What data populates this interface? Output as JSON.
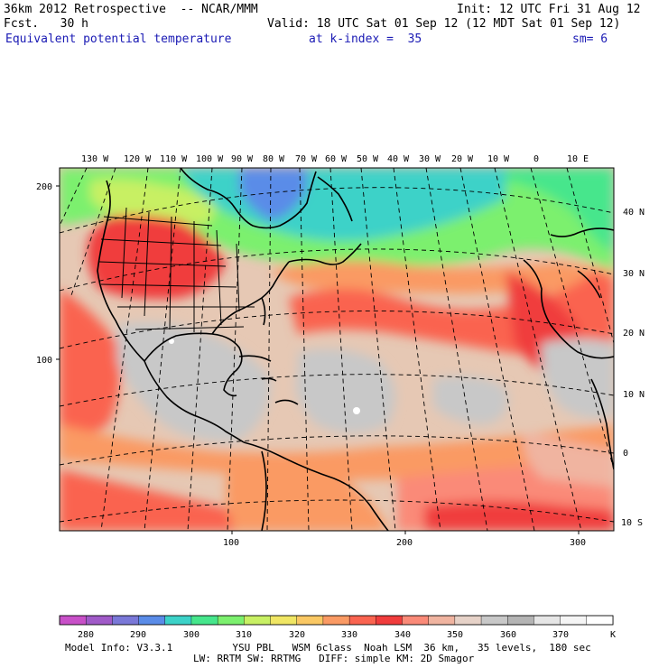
{
  "header": {
    "model_title": "36km 2012 Retrospective  -- NCAR/MMM",
    "init": "Init: 12 UTC Fri 31 Aug 12",
    "forecast": "Fcst.   30 h",
    "valid": "Valid: 18 UTC Sat 01 Sep 12 (12 MDT Sat 01 Sep 12)",
    "field": "Equivalent potential temperature",
    "level": "at k-index =  35",
    "smoothing": "sm= 6"
  },
  "map": {
    "longitude_labels": [
      "130 W",
      "120 W",
      "110 W",
      "100 W",
      "90 W",
      "80 W",
      "70 W",
      "60 W",
      "50 W",
      "40 W",
      "30 W",
      "20 W",
      "10 W",
      "0",
      "10 E"
    ],
    "latitude_labels": [
      "40 N",
      "30 N",
      "20 N",
      "10 N",
      "0",
      "10 S"
    ],
    "grid_y_labels": [
      "200",
      "100"
    ],
    "grid_x_labels": [
      "100",
      "200",
      "300"
    ]
  },
  "colorbar": {
    "tick_labels": [
      "280",
      "290",
      "300",
      "310",
      "320",
      "330",
      "340",
      "350",
      "360",
      "370"
    ],
    "unit": "K",
    "colors": [
      "#c850c8",
      "#a05ac8",
      "#7a78d8",
      "#5a8ce8",
      "#3cd2c8",
      "#46e68c",
      "#7cf06e",
      "#c8f064",
      "#f0e664",
      "#fac864",
      "#fa9a64",
      "#fa6450",
      "#f03c3c",
      "#fa8a78",
      "#f0b4a0",
      "#e6d2c8",
      "#c8c8c8",
      "#b4b4b4",
      "#e6e6e6",
      "#f5f5f5",
      "#ffffff"
    ]
  },
  "footer": {
    "line1": "Model Info: V3.3.1          YSU PBL   WSM 6class  Noah LSM  36 km,   35 levels,  180 sec",
    "line2": "LW: RRTM SW: RRTMG   DIFF: simple KM: 2D Smagor"
  }
}
